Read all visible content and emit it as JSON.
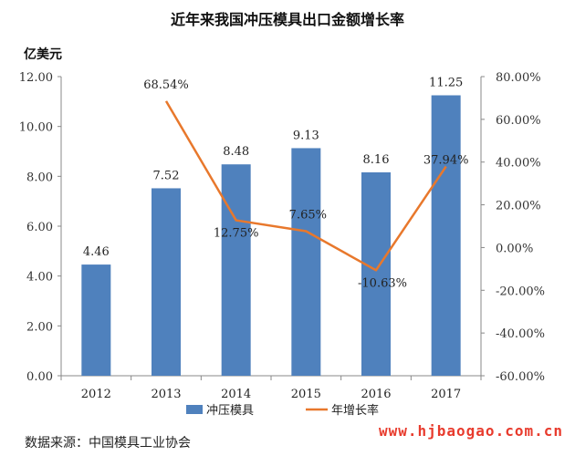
{
  "chart_data": {
    "type": "bar",
    "title": "近年来我国冲压模具出口金额增长率",
    "ylabel": "亿美元",
    "categories": [
      "2012",
      "2013",
      "2014",
      "2015",
      "2016",
      "2017"
    ],
    "ylim": [
      0,
      12
    ],
    "y_ticks": [
      "0.00",
      "2.00",
      "4.00",
      "6.00",
      "8.00",
      "10.00",
      "12.00"
    ],
    "y2lim": [
      -60,
      80
    ],
    "y2_ticks": [
      "-60.00%",
      "-40.00%",
      "-20.00%",
      "0.00%",
      "20.00%",
      "40.00%",
      "60.00%",
      "80.00%"
    ],
    "series": [
      {
        "name": "冲压模具",
        "type": "bar",
        "axis": "left",
        "color": "#4f81bd",
        "values": [
          4.46,
          7.52,
          8.48,
          9.13,
          8.16,
          11.25
        ],
        "labels": [
          "4.46",
          "7.52",
          "8.48",
          "9.13",
          "8.16",
          "11.25"
        ]
      },
      {
        "name": "年增长率",
        "type": "line",
        "axis": "right",
        "color": "#e8782c",
        "values": [
          null,
          68.54,
          12.75,
          7.65,
          -10.63,
          37.94
        ],
        "labels": [
          "",
          "68.54%",
          "12.75%",
          "7.65%",
          "-10.63%",
          "37.94%"
        ]
      }
    ],
    "grid": false,
    "legend": "bottom"
  },
  "footer": {
    "source": "数据来源：中国模具工业协会",
    "watermark": "www.hjbaogao.com.cn"
  }
}
